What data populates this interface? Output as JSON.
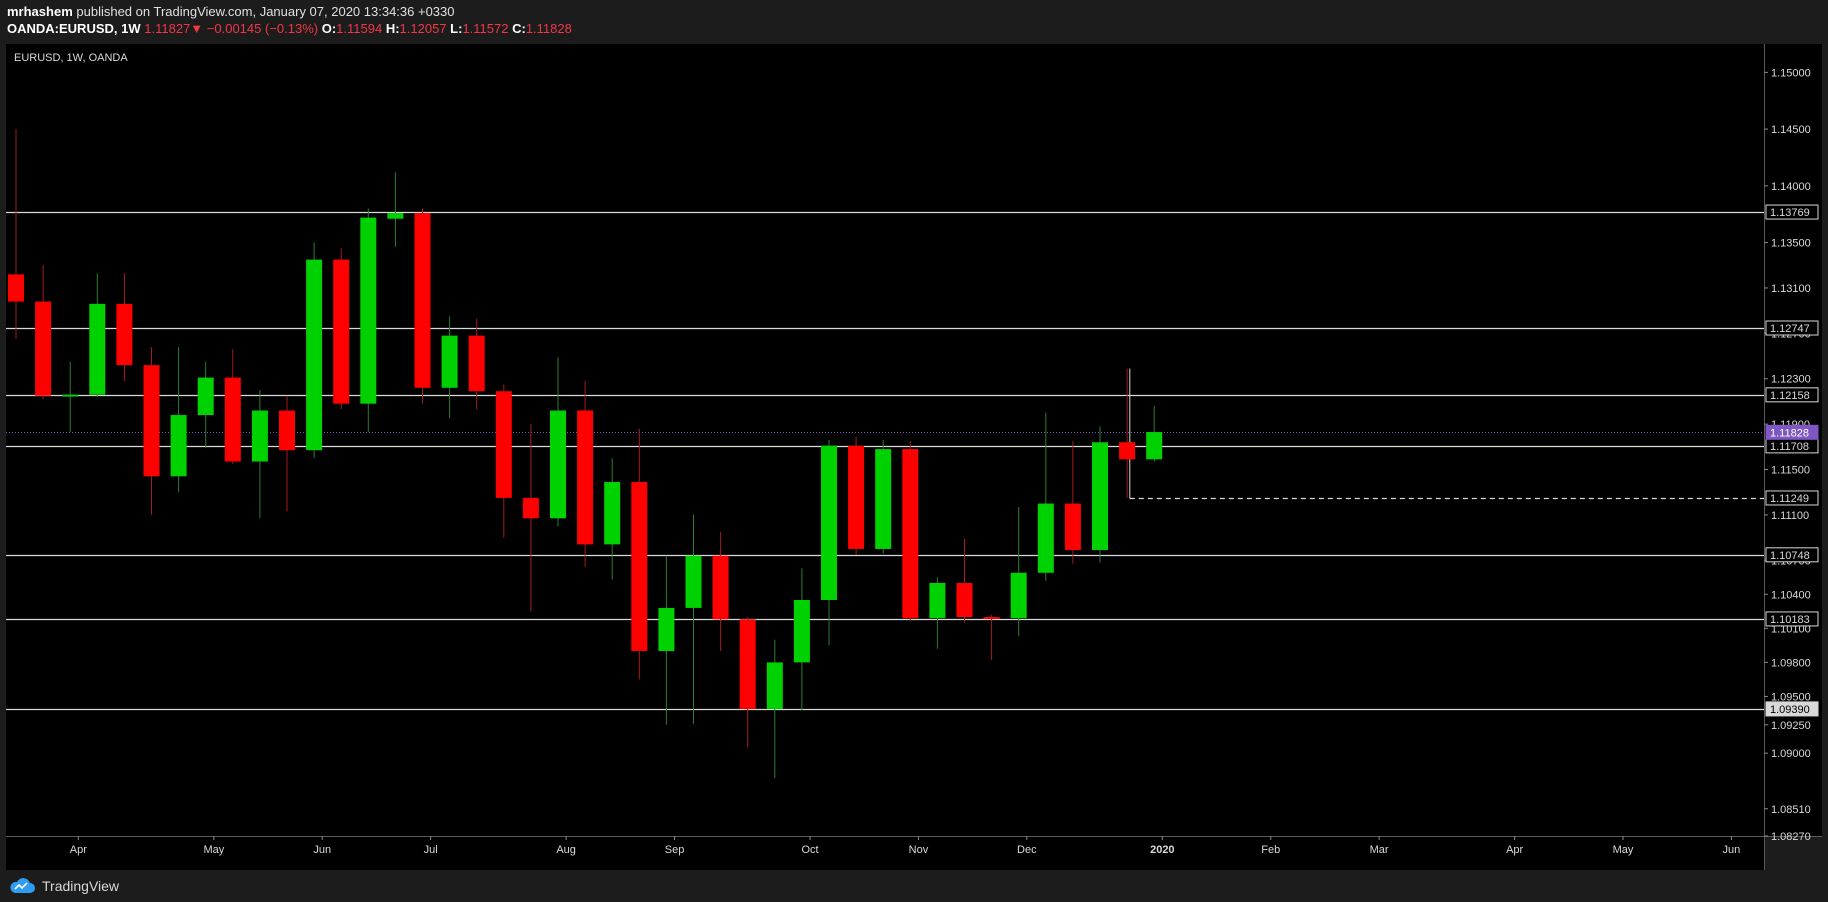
{
  "header": {
    "author": "mrhashem",
    "published_text": "published on TradingView.com, January 07, 2020 13:34:36 +0330",
    "symbol": "OANDA:EURUSD, 1W",
    "last": "1.11827",
    "change": "−0.00145 (−0.13%)",
    "open_label": "O:",
    "open": "1.11594",
    "high_label": "H:",
    "high": "1.12057",
    "low_label": "L:",
    "low": "1.11572",
    "close_label": "C:",
    "close": "1.11828"
  },
  "footer": {
    "brand": "TradingView"
  },
  "colors": {
    "up": "#00d100",
    "down": "#ff0000",
    "background": "#000000",
    "frame": "#1c1c1c",
    "hline": "#d9d9d9",
    "price_tag": "#7e57c2",
    "text": "#d9d9d9"
  },
  "chart_data": {
    "type": "candlestick",
    "title": "EURUSD, 1W, OANDA",
    "interval": "1W",
    "ylim": [
      1.0827,
      1.1525
    ],
    "y_ticks": [
      "1.15000",
      "1.14500",
      "1.14000",
      "1.13500",
      "1.13100",
      "1.12700",
      "1.12300",
      "1.11900",
      "1.11500",
      "1.11100",
      "1.10700",
      "1.10400",
      "1.10100",
      "1.09800",
      "1.09500",
      "1.09250",
      "1.09000",
      "1.08510",
      "1.08270"
    ],
    "x_labels": [
      "Apr",
      "May",
      "Jun",
      "Jul",
      "Aug",
      "Sep",
      "Oct",
      "Nov",
      "Dec",
      "2020",
      "Feb",
      "Mar",
      "Apr",
      "May",
      "Jun"
    ],
    "x_label_weeks": [
      2.3,
      7.3,
      11.3,
      15.3,
      20.3,
      24.3,
      29.3,
      33.3,
      37.3,
      42.3,
      46.3,
      50.3,
      55.3,
      59.3,
      63.3
    ],
    "candles": [
      {
        "o": 1.1322,
        "h": 1.145,
        "l": 1.1265,
        "c": 1.1298
      },
      {
        "o": 1.1298,
        "h": 1.133,
        "l": 1.1212,
        "c": 1.1215
      },
      {
        "o": 1.1215,
        "h": 1.1245,
        "l": 1.1183,
        "c": 1.1216
      },
      {
        "o": 1.1216,
        "h": 1.1323,
        "l": 1.1214,
        "c": 1.1296
      },
      {
        "o": 1.1296,
        "h": 1.1323,
        "l": 1.1228,
        "c": 1.1242
      },
      {
        "o": 1.1242,
        "h": 1.1258,
        "l": 1.111,
        "c": 1.1144
      },
      {
        "o": 1.1144,
        "h": 1.1258,
        "l": 1.113,
        "c": 1.1198
      },
      {
        "o": 1.1198,
        "h": 1.1245,
        "l": 1.1169,
        "c": 1.1231
      },
      {
        "o": 1.1231,
        "h": 1.1256,
        "l": 1.1155,
        "c": 1.1157
      },
      {
        "o": 1.1157,
        "h": 1.122,
        "l": 1.1107,
        "c": 1.1202
      },
      {
        "o": 1.1202,
        "h": 1.1215,
        "l": 1.1113,
        "c": 1.1167
      },
      {
        "o": 1.1167,
        "h": 1.135,
        "l": 1.116,
        "c": 1.1335
      },
      {
        "o": 1.1335,
        "h": 1.1345,
        "l": 1.1203,
        "c": 1.1208
      },
      {
        "o": 1.1208,
        "h": 1.138,
        "l": 1.1183,
        "c": 1.1372
      },
      {
        "o": 1.1371,
        "h": 1.1412,
        "l": 1.1346,
        "c": 1.1376
      },
      {
        "o": 1.1376,
        "h": 1.138,
        "l": 1.1208,
        "c": 1.1222
      },
      {
        "o": 1.1222,
        "h": 1.1285,
        "l": 1.1195,
        "c": 1.1268
      },
      {
        "o": 1.1268,
        "h": 1.1283,
        "l": 1.1203,
        "c": 1.1219
      },
      {
        "o": 1.1219,
        "h": 1.1225,
        "l": 1.109,
        "c": 1.1125
      },
      {
        "o": 1.1125,
        "h": 1.119,
        "l": 1.1025,
        "c": 1.1107
      },
      {
        "o": 1.1107,
        "h": 1.1249,
        "l": 1.11,
        "c": 1.1202
      },
      {
        "o": 1.1202,
        "h": 1.1228,
        "l": 1.1064,
        "c": 1.1084
      },
      {
        "o": 1.1084,
        "h": 1.116,
        "l": 1.1053,
        "c": 1.1139
      },
      {
        "o": 1.1139,
        "h": 1.1186,
        "l": 1.0965,
        "c": 1.099
      },
      {
        "o": 1.099,
        "h": 1.1074,
        "l": 1.0925,
        "c": 1.1028
      },
      {
        "o": 1.1028,
        "h": 1.111,
        "l": 1.0926,
        "c": 1.1074
      },
      {
        "o": 1.1074,
        "h": 1.1095,
        "l": 1.099,
        "c": 1.1018
      },
      {
        "o": 1.1018,
        "h": 1.102,
        "l": 1.0905,
        "c": 1.0939
      },
      {
        "o": 1.0939,
        "h": 1.1,
        "l": 1.0878,
        "c": 1.098
      },
      {
        "o": 1.098,
        "h": 1.1063,
        "l": 1.0938,
        "c": 1.1035
      },
      {
        "o": 1.1035,
        "h": 1.1176,
        "l": 1.0995,
        "c": 1.1171
      },
      {
        "o": 1.1171,
        "h": 1.1179,
        "l": 1.1075,
        "c": 1.108
      },
      {
        "o": 1.108,
        "h": 1.1176,
        "l": 1.1076,
        "c": 1.1168
      },
      {
        "o": 1.1168,
        "h": 1.1175,
        "l": 1.1017,
        "c": 1.1019
      },
      {
        "o": 1.1019,
        "h": 1.1055,
        "l": 1.0992,
        "c": 1.105
      },
      {
        "o": 1.105,
        "h": 1.1089,
        "l": 1.1015,
        "c": 1.102
      },
      {
        "o": 1.102,
        "h": 1.1022,
        "l": 1.0982,
        "c": 1.1019
      },
      {
        "o": 1.1019,
        "h": 1.1117,
        "l": 1.1003,
        "c": 1.1059
      },
      {
        "o": 1.1059,
        "h": 1.12,
        "l": 1.1052,
        "c": 1.112
      },
      {
        "o": 1.112,
        "h": 1.1175,
        "l": 1.1067,
        "c": 1.1079
      },
      {
        "o": 1.1079,
        "h": 1.1188,
        "l": 1.1068,
        "c": 1.1174
      },
      {
        "o": 1.1174,
        "h": 1.1239,
        "l": 1.1125,
        "c": 1.1159
      },
      {
        "o": 1.1159,
        "h": 1.1206,
        "l": 1.1157,
        "c": 1.1183
      }
    ],
    "levels": [
      {
        "value": 1.13769,
        "label": "1.13769"
      },
      {
        "value": 1.12747,
        "label": "1.12747"
      },
      {
        "value": 1.12158,
        "label": "1.12158"
      },
      {
        "value": 1.11708,
        "label": "1.11708"
      },
      {
        "value": 1.10748,
        "label": "1.10748"
      },
      {
        "value": 1.10183,
        "label": "1.10183"
      },
      {
        "value": 1.0939,
        "label": "1.09390"
      }
    ],
    "last_price": {
      "value": 1.11828,
      "label": "1.11828"
    },
    "dashed_level": {
      "value": 1.11249,
      "label": "1.11249",
      "from_week": 41.1
    }
  }
}
